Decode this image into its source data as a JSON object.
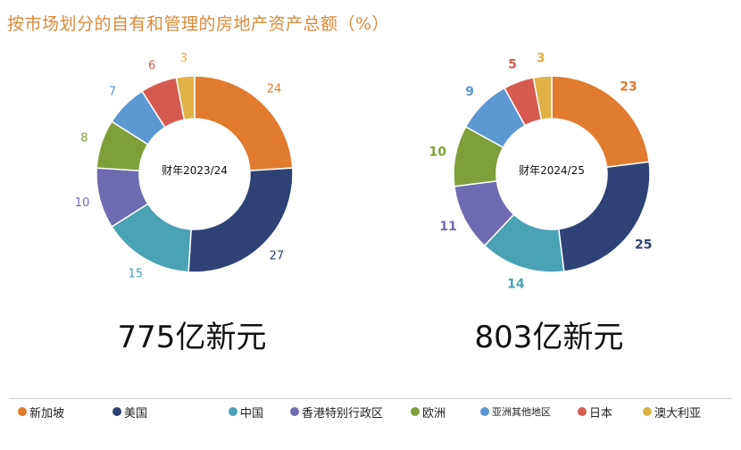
{
  "title": "按市场划分的自有和管理的房地产资产总额（%）",
  "colors": {
    "title": "#d98a39",
    "categories": [
      "#e07b2f",
      "#2f4275",
      "#4aa2b5",
      "#6f6bb0",
      "#7f9f3a",
      "#5e98d2",
      "#d65a4f",
      "#e0b246"
    ]
  },
  "chart_data": [
    {
      "type": "pie",
      "center_label": "财年2023/24",
      "categories": [
        "新加坡",
        "美国",
        "中国",
        "香港特别行政区",
        "欧洲",
        "亚洲其他地区",
        "日本",
        "澳大利亚"
      ],
      "values": [
        24,
        27,
        15,
        10,
        8,
        7,
        6,
        3
      ],
      "value_labels": [
        "24",
        "27",
        "15",
        "10",
        "8",
        "7",
        "6",
        "3"
      ],
      "total": "775亿新元"
    },
    {
      "type": "pie",
      "center_label": "财年2024/25",
      "categories": [
        "新加坡",
        "美国",
        "中国",
        "香港特别行政区",
        "欧洲",
        "亚洲其他地区",
        "日本",
        "澳大利亚"
      ],
      "values": [
        23,
        25,
        14,
        11,
        10,
        9,
        5,
        3
      ],
      "value_labels": [
        "23",
        "25",
        "14",
        "11",
        "10",
        "9",
        "5",
        "3"
      ],
      "total": "803亿新元"
    }
  ],
  "legend": [
    "新加坡",
    "美国",
    "中国",
    "香港特别行政区",
    "欧洲",
    "亚洲其他地区",
    "日本",
    "澳大利亚"
  ]
}
